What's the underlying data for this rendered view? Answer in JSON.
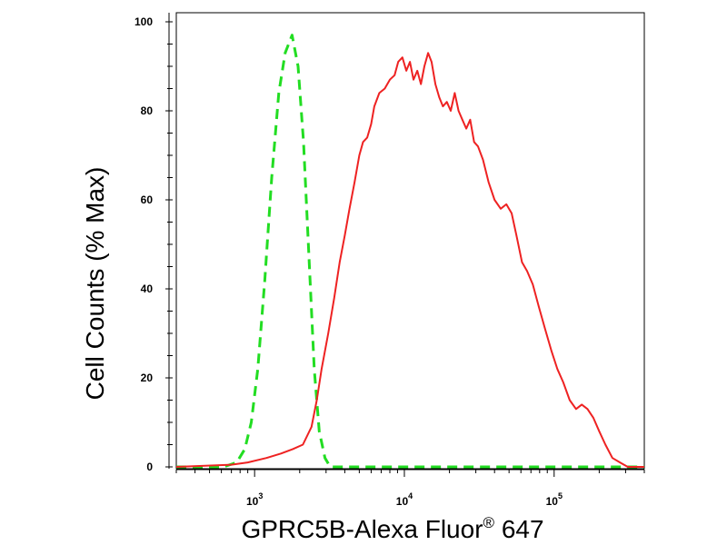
{
  "chart_data": {
    "type": "line",
    "xlabel": {
      "text": "GPRC5B-Alexa Fluor",
      "superscript": "®",
      "suffix": " 647"
    },
    "ylabel": "Cell Counts (% Max)",
    "x_scale": "log",
    "xlim": [
      300,
      400000
    ],
    "ylim": [
      0,
      100
    ],
    "x_ticks": [
      {
        "value": 1000,
        "base": "10",
        "exp": "3"
      },
      {
        "value": 10000,
        "base": "10",
        "exp": "4"
      },
      {
        "value": 100000,
        "base": "10",
        "exp": "5"
      }
    ],
    "y_ticks": [
      {
        "value": 0,
        "label": "0"
      },
      {
        "value": 20,
        "label": "20"
      },
      {
        "value": 40,
        "label": "40"
      },
      {
        "value": 60,
        "label": "60"
      },
      {
        "value": 80,
        "label": "80"
      },
      {
        "value": 100,
        "label": "100"
      }
    ],
    "grid": false,
    "series": [
      {
        "color": "#22dd22",
        "style": "dashed",
        "points": [
          [
            300,
            0
          ],
          [
            620,
            0
          ],
          [
            760,
            1
          ],
          [
            860,
            4
          ],
          [
            950,
            10
          ],
          [
            1050,
            22
          ],
          [
            1170,
            42
          ],
          [
            1300,
            65
          ],
          [
            1450,
            84
          ],
          [
            1600,
            93
          ],
          [
            1780,
            97
          ],
          [
            1950,
            90
          ],
          [
            2120,
            73
          ],
          [
            2300,
            48
          ],
          [
            2500,
            22
          ],
          [
            2700,
            8
          ],
          [
            2950,
            2
          ],
          [
            3200,
            0
          ],
          [
            400000,
            0
          ]
        ]
      },
      {
        "color": "#ee2222",
        "style": "solid",
        "points": [
          [
            300,
            0
          ],
          [
            700,
            0.5
          ],
          [
            900,
            1
          ],
          [
            1200,
            2
          ],
          [
            1500,
            3
          ],
          [
            1800,
            4
          ],
          [
            2100,
            5
          ],
          [
            2400,
            9
          ],
          [
            2600,
            15
          ],
          [
            2800,
            22
          ],
          [
            3100,
            30
          ],
          [
            3400,
            38
          ],
          [
            3700,
            46
          ],
          [
            4000,
            52
          ],
          [
            4300,
            58
          ],
          [
            4650,
            64
          ],
          [
            5000,
            70
          ],
          [
            5300,
            73
          ],
          [
            5650,
            74
          ],
          [
            6000,
            77
          ],
          [
            6300,
            81
          ],
          [
            6800,
            84
          ],
          [
            7400,
            85
          ],
          [
            8000,
            87
          ],
          [
            8600,
            88
          ],
          [
            9100,
            91
          ],
          [
            9700,
            92
          ],
          [
            10300,
            89
          ],
          [
            10900,
            91
          ],
          [
            11500,
            87
          ],
          [
            12200,
            89
          ],
          [
            12900,
            86
          ],
          [
            13600,
            90
          ],
          [
            14400,
            93
          ],
          [
            15200,
            91
          ],
          [
            16100,
            86
          ],
          [
            17100,
            83
          ],
          [
            18100,
            81
          ],
          [
            19200,
            82
          ],
          [
            20400,
            80
          ],
          [
            21700,
            84
          ],
          [
            23000,
            80
          ],
          [
            24400,
            78
          ],
          [
            25900,
            76
          ],
          [
            27500,
            78
          ],
          [
            29200,
            73
          ],
          [
            31000,
            72
          ],
          [
            33500,
            69
          ],
          [
            36500,
            64
          ],
          [
            40000,
            60
          ],
          [
            44000,
            58
          ],
          [
            48000,
            59
          ],
          [
            52000,
            57
          ],
          [
            56000,
            52
          ],
          [
            61000,
            46
          ],
          [
            66000,
            44
          ],
          [
            72000,
            41
          ],
          [
            79000,
            36
          ],
          [
            87000,
            31
          ],
          [
            96000,
            26
          ],
          [
            105000,
            22
          ],
          [
            115000,
            19
          ],
          [
            127000,
            15
          ],
          [
            140000,
            13
          ],
          [
            153000,
            14
          ],
          [
            167000,
            13
          ],
          [
            183000,
            11
          ],
          [
            200000,
            8
          ],
          [
            220000,
            5
          ],
          [
            245000,
            2
          ],
          [
            275000,
            1
          ],
          [
            310000,
            0
          ],
          [
            400000,
            0
          ]
        ]
      }
    ]
  }
}
